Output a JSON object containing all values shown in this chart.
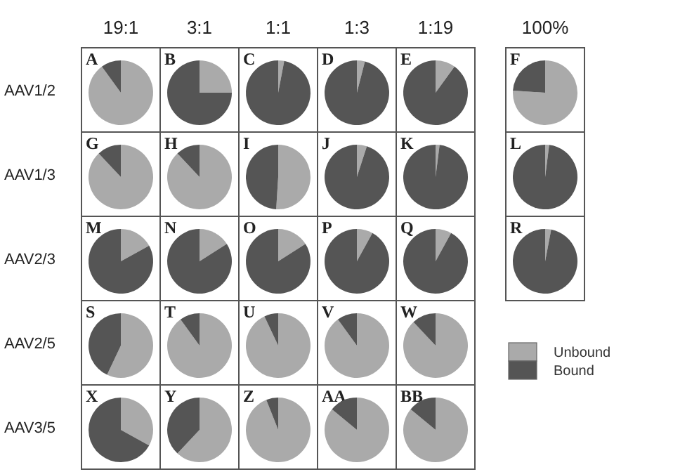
{
  "chart_data": [
    {
      "type": "pie",
      "title": "A",
      "xlabel": "19:1",
      "ylabel": "AAV1/2",
      "categories": [
        null,
        null
      ],
      "values": [
        90,
        10
      ],
      "colors": [
        "#aaaaaa",
        "#555555"
      ]
    },
    {
      "type": "pie",
      "title": "B",
      "xlabel": "3:1",
      "categories": [
        null,
        null
      ],
      "values": [
        25,
        75
      ],
      "colors": [
        "#aaaaaa",
        "#555555"
      ]
    },
    {
      "type": "pie",
      "title": "C",
      "xlabel": "1:1",
      "categories": [
        null,
        null
      ],
      "values": [
        3,
        97
      ],
      "colors": [
        "#aaaaaa",
        "#555555"
      ]
    },
    {
      "type": "pie",
      "title": "D",
      "xlabel": "1:3",
      "categories": [
        null,
        null
      ],
      "values": [
        4,
        96
      ],
      "colors": [
        "#aaaaaa",
        "#555555"
      ]
    },
    {
      "type": "pie",
      "title": "E",
      "xlabel": "1:19",
      "categories": [
        null,
        null
      ],
      "values": [
        10,
        90
      ],
      "colors": [
        "#aaaaaa",
        "#555555"
      ]
    },
    {
      "type": "pie",
      "title": "F",
      "xlabel": "100%",
      "categories": [
        null,
        null
      ],
      "values": [
        76,
        24
      ],
      "colors": [
        "#aaaaaa",
        "#555555"
      ]
    },
    {
      "type": "pie",
      "title": "G",
      "ylabel": "AAV1/3",
      "categories": [
        null,
        null
      ],
      "values": [
        88,
        12
      ],
      "colors": [
        "#aaaaaa",
        "#555555"
      ]
    },
    {
      "type": "pie",
      "title": "H",
      "categories": [
        null,
        null
      ],
      "values": [
        88,
        12
      ],
      "colors": [
        "#aaaaaa",
        "#555555"
      ]
    },
    {
      "type": "pie",
      "title": "I",
      "categories": [
        null,
        null
      ],
      "values": [
        51,
        49
      ],
      "colors": [
        "#aaaaaa",
        "#555555"
      ]
    },
    {
      "type": "pie",
      "title": "J",
      "categories": [
        null,
        null
      ],
      "values": [
        5,
        95
      ],
      "colors": [
        "#aaaaaa",
        "#555555"
      ]
    },
    {
      "type": "pie",
      "title": "K",
      "categories": [
        null,
        null
      ],
      "values": [
        2,
        98
      ],
      "colors": [
        "#aaaaaa",
        "#555555"
      ]
    },
    {
      "type": "pie",
      "title": "L",
      "categories": [
        null,
        null
      ],
      "values": [
        2,
        98
      ],
      "colors": [
        "#aaaaaa",
        "#555555"
      ]
    },
    {
      "type": "pie",
      "title": "M",
      "ylabel": "AAV2/3",
      "categories": [
        null,
        null
      ],
      "values": [
        17,
        83
      ],
      "colors": [
        "#aaaaaa",
        "#555555"
      ]
    },
    {
      "type": "pie",
      "title": "N",
      "categories": [
        null,
        null
      ],
      "values": [
        16,
        84
      ],
      "colors": [
        "#aaaaaa",
        "#555555"
      ]
    },
    {
      "type": "pie",
      "title": "O",
      "categories": [
        null,
        null
      ],
      "values": [
        16,
        84
      ],
      "colors": [
        "#aaaaaa",
        "#555555"
      ]
    },
    {
      "type": "pie",
      "title": "P",
      "categories": [
        null,
        null
      ],
      "values": [
        8,
        92
      ],
      "colors": [
        "#aaaaaa",
        "#555555"
      ]
    },
    {
      "type": "pie",
      "title": "Q",
      "categories": [
        null,
        null
      ],
      "values": [
        8,
        92
      ],
      "colors": [
        "#aaaaaa",
        "#555555"
      ]
    },
    {
      "type": "pie",
      "title": "R",
      "categories": [
        "Unbound",
        "Bound"
      ],
      "values": [
        3,
        97
      ],
      "colors": [
        "#aaaaaa",
        "#555555"
      ],
      "legend": "bottom"
    },
    {
      "type": "pie",
      "title": "S",
      "ylabel": "AAV2/5",
      "categories": [
        null,
        null
      ],
      "values": [
        57,
        43
      ],
      "colors": [
        "#aaaaaa",
        "#555555"
      ]
    },
    {
      "type": "pie",
      "title": "T",
      "categories": [
        null,
        null
      ],
      "values": [
        90,
        10
      ],
      "colors": [
        "#aaaaaa",
        "#555555"
      ]
    },
    {
      "type": "pie",
      "title": "U",
      "categories": [
        null,
        null
      ],
      "values": [
        93,
        7
      ],
      "colors": [
        "#aaaaaa",
        "#555555"
      ]
    },
    {
      "type": "pie",
      "title": "V",
      "categories": [
        null,
        null
      ],
      "values": [
        90,
        10
      ],
      "colors": [
        "#aaaaaa",
        "#555555"
      ]
    },
    {
      "type": "pie",
      "title": "W",
      "categories": [
        null,
        null
      ],
      "values": [
        88,
        12
      ],
      "colors": [
        "#aaaaaa",
        "#555555"
      ]
    },
    {
      "type": "pie",
      "title": "X",
      "ylabel": "AAV3/5",
      "categories": [
        null,
        null
      ],
      "values": [
        33,
        67
      ],
      "colors": [
        "#aaaaaa",
        "#555555"
      ]
    },
    {
      "type": "pie",
      "title": "Y",
      "categories": [
        null,
        null
      ],
      "values": [
        62,
        38
      ],
      "colors": [
        "#aaaaaa",
        "#555555"
      ]
    },
    {
      "type": "pie",
      "title": "Z",
      "categories": [
        null,
        null
      ],
      "values": [
        94,
        6
      ],
      "colors": [
        "#aaaaaa",
        "#555555"
      ]
    },
    {
      "type": "pie",
      "title": "AA",
      "categories": [
        null,
        null
      ],
      "values": [
        86,
        14
      ],
      "colors": [
        "#aaaaaa",
        "#555555"
      ]
    },
    {
      "type": "pie",
      "title": "BB",
      "categories": [
        null,
        null
      ],
      "values": [
        86,
        14
      ],
      "colors": [
        "#aaaaaa",
        "#555555"
      ]
    }
  ]
}
